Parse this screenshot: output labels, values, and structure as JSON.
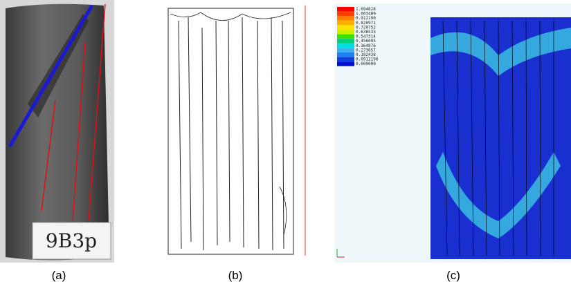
{
  "captions": [
    "(a)",
    "(b)",
    "(c)"
  ],
  "specimen_label": "9B3p",
  "legend": {
    "labels": [
      "1.094828",
      "1.003489",
      "0.912190",
      "0.820971",
      "0.729752",
      "0.638533",
      "0.547314",
      "0.456095",
      "0.364876",
      "0.273657",
      "0.182438",
      "0.0912190",
      "0.000000"
    ]
  }
}
